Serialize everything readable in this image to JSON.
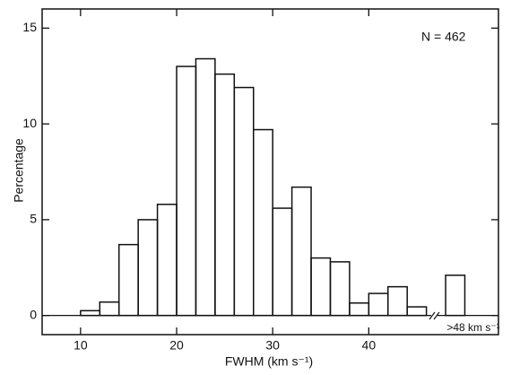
{
  "chart_data": {
    "type": "histogram",
    "x_label": "FWHM (km s⁻¹)",
    "y_label": "Percentage",
    "annotations": [
      "N = 462",
      ">48 km s⁻¹"
    ],
    "bins": [
      10,
      12,
      14,
      16,
      18,
      20,
      22,
      24,
      26,
      28,
      30,
      32,
      34,
      36,
      38,
      40,
      42,
      44,
      46,
      48,
      50
    ],
    "counts": [
      0.25,
      0.7,
      3.7,
      5.0,
      5.8,
      13.0,
      13.4,
      12.6,
      11.9,
      9.7,
      5.6,
      6.7,
      3.0,
      2.8,
      0.65,
      1.15,
      1.5,
      0.45,
      null,
      2.1
    ],
    "color": "#111111",
    "xlim": [
      6,
      53.5
    ],
    "xticks": [
      10,
      20,
      30,
      40
    ],
    "ylim": [
      -1,
      16
    ],
    "yticks": [
      0,
      5,
      10,
      15
    ]
  }
}
